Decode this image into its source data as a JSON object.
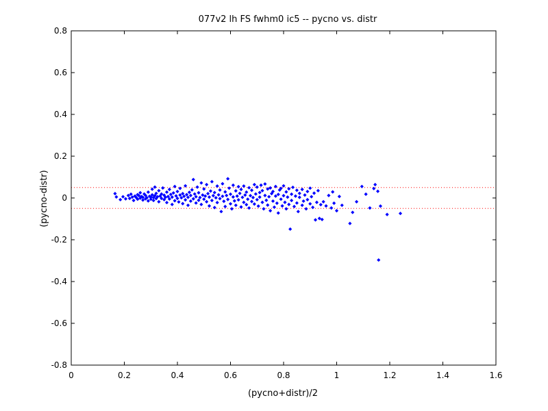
{
  "chart_data": {
    "type": "scatter",
    "title": "077v2 lh FS fwhm0 ic5 -- pycno vs. distr",
    "xlabel": "(pycno+distr)/2",
    "ylabel": "(pycno-distr)",
    "xlim": [
      0,
      1.6
    ],
    "ylim": [
      -0.8,
      0.8
    ],
    "xticks": [
      0,
      0.2,
      0.4,
      0.6,
      0.8,
      1,
      1.2,
      1.4,
      1.6
    ],
    "xtick_labels": [
      "0",
      "0.2",
      "0.4",
      "0.6",
      "0.8",
      "1",
      "1.2",
      "1.4",
      "1.6"
    ],
    "yticks": [
      -0.8,
      -0.6,
      -0.4,
      -0.2,
      0,
      0.2,
      0.4,
      0.6,
      0.8
    ],
    "ytick_labels": [
      "-0.8",
      "-0.6",
      "-0.4",
      "-0.2",
      "0",
      "0.2",
      "0.4",
      "0.6",
      "0.8"
    ],
    "grid": false,
    "marker_color": "#0000ff",
    "reference_line_color": "#ff0000",
    "reference_lines": [
      {
        "y": 0.05,
        "style": "dotted"
      },
      {
        "y": -0.05,
        "style": "dotted"
      }
    ],
    "series": [
      {
        "marker": "diamond",
        "points": [
          [
            0.165,
            0.021
          ],
          [
            0.17,
            0.005
          ],
          [
            0.185,
            -0.008
          ],
          [
            0.195,
            0.006
          ],
          [
            0.205,
            -0.004
          ],
          [
            0.215,
            0.012
          ],
          [
            0.22,
            -0.002
          ],
          [
            0.225,
            0.018
          ],
          [
            0.23,
            0.004
          ],
          [
            0.235,
            -0.012
          ],
          [
            0.24,
            0.009
          ],
          [
            0.245,
            0.002
          ],
          [
            0.25,
            0.016
          ],
          [
            0.25,
            -0.006
          ],
          [
            0.255,
            0.011
          ],
          [
            0.26,
            -0.001
          ],
          [
            0.26,
            0.025
          ],
          [
            0.265,
            0.007
          ],
          [
            0.27,
            -0.01
          ],
          [
            0.27,
            0.003
          ],
          [
            0.275,
            0.019
          ],
          [
            0.28,
            -0.004
          ],
          [
            0.28,
            0.012
          ],
          [
            0.285,
            0.001
          ],
          [
            0.29,
            0.028
          ],
          [
            0.29,
            -0.014
          ],
          [
            0.295,
            0.008
          ],
          [
            0.3,
            0.004
          ],
          [
            0.3,
            -0.006
          ],
          [
            0.305,
            0.015
          ],
          [
            0.305,
            0.042
          ],
          [
            0.31,
            0.002
          ],
          [
            0.31,
            -0.012
          ],
          [
            0.315,
            0.052
          ],
          [
            0.315,
            0.011
          ],
          [
            0.32,
            -0.003
          ],
          [
            0.32,
            0.022
          ],
          [
            0.325,
            0.006
          ],
          [
            0.33,
            -0.018
          ],
          [
            0.33,
            0.035
          ],
          [
            0.335,
            0.009
          ],
          [
            0.34,
            -0.002
          ],
          [
            0.34,
            0.019
          ],
          [
            0.345,
            0.048
          ],
          [
            0.35,
            -0.008
          ],
          [
            0.35,
            0.013
          ],
          [
            0.355,
            0.003
          ],
          [
            0.36,
            0.028
          ],
          [
            0.36,
            -0.022
          ],
          [
            0.365,
            0.007
          ],
          [
            0.37,
            0.041
          ],
          [
            0.37,
            -0.005
          ],
          [
            0.375,
            0.017
          ],
          [
            0.38,
            -0.031
          ],
          [
            0.38,
            0.004
          ],
          [
            0.385,
            0.024
          ],
          [
            0.39,
            -0.013
          ],
          [
            0.39,
            0.055
          ],
          [
            0.395,
            0.01
          ],
          [
            0.4,
            -0.002
          ],
          [
            0.4,
            0.031
          ],
          [
            0.405,
            -0.019
          ],
          [
            0.41,
            0.014
          ],
          [
            0.41,
            0.046
          ],
          [
            0.415,
            0.001
          ],
          [
            0.42,
            -0.027
          ],
          [
            0.42,
            0.021
          ],
          [
            0.425,
            0.008
          ],
          [
            0.43,
            -0.009
          ],
          [
            0.43,
            0.058
          ],
          [
            0.435,
            0.016
          ],
          [
            0.44,
            -0.035
          ],
          [
            0.44,
            0.003
          ],
          [
            0.445,
            0.027
          ],
          [
            0.45,
            -0.015
          ],
          [
            0.45,
            0.012
          ],
          [
            0.455,
            0.039
          ],
          [
            0.46,
            -0.004
          ],
          [
            0.46,
            0.088
          ],
          [
            0.465,
            0.019
          ],
          [
            0.47,
            -0.024
          ],
          [
            0.47,
            0.006
          ],
          [
            0.475,
            0.052
          ],
          [
            0.48,
            -0.011
          ],
          [
            0.48,
            0.025
          ],
          [
            0.485,
            0.002
          ],
          [
            0.49,
            0.072
          ],
          [
            0.49,
            -0.031
          ],
          [
            0.495,
            0.014
          ],
          [
            0.5,
            -0.006
          ],
          [
            0.5,
            0.043
          ],
          [
            0.505,
            0.009
          ],
          [
            0.51,
            -0.018
          ],
          [
            0.51,
            0.064
          ],
          [
            0.515,
            0.021
          ],
          [
            0.52,
            -0.038
          ],
          [
            0.52,
            0.004
          ],
          [
            0.525,
            0.033
          ],
          [
            0.53,
            -0.012
          ],
          [
            0.53,
            0.078
          ],
          [
            0.535,
            0.011
          ],
          [
            0.54,
            -0.046
          ],
          [
            0.54,
            0.026
          ],
          [
            0.545,
            0.001
          ],
          [
            0.55,
            0.057
          ],
          [
            0.55,
            -0.022
          ],
          [
            0.555,
            0.015
          ],
          [
            0.56,
            -0.003
          ],
          [
            0.56,
            0.038
          ],
          [
            0.565,
            -0.065
          ],
          [
            0.57,
            0.008
          ],
          [
            0.57,
            0.068
          ],
          [
            0.575,
            -0.016
          ],
          [
            0.58,
            0.029
          ],
          [
            0.58,
            -0.041
          ],
          [
            0.585,
            0.012
          ],
          [
            0.59,
            0.092
          ],
          [
            0.59,
            -0.007
          ],
          [
            0.595,
            0.047
          ],
          [
            0.6,
            -0.028
          ],
          [
            0.6,
            0.018
          ],
          [
            0.605,
            -0.052
          ],
          [
            0.61,
            0.005
          ],
          [
            0.61,
            0.061
          ],
          [
            0.615,
            -0.014
          ],
          [
            0.62,
            0.034
          ],
          [
            0.62,
            -0.035
          ],
          [
            0.625,
            0.009
          ],
          [
            0.63,
            0.054
          ],
          [
            0.63,
            -0.009
          ],
          [
            0.635,
            0.022
          ],
          [
            0.64,
            -0.043
          ],
          [
            0.64,
            0.041
          ],
          [
            0.645,
            0.003
          ],
          [
            0.65,
            -0.021
          ],
          [
            0.65,
            0.057
          ],
          [
            0.655,
            0.014
          ],
          [
            0.66,
            -0.032
          ],
          [
            0.66,
            0.028
          ],
          [
            0.665,
            -0.006
          ],
          [
            0.67,
            0.049
          ],
          [
            0.67,
            -0.048
          ],
          [
            0.675,
            0.011
          ],
          [
            0.68,
            0.037
          ],
          [
            0.68,
            -0.017
          ],
          [
            0.685,
            0.002
          ],
          [
            0.69,
            0.064
          ],
          [
            0.69,
            -0.029
          ],
          [
            0.695,
            0.019
          ],
          [
            0.7,
            -0.008
          ],
          [
            0.7,
            0.052
          ],
          [
            0.705,
            -0.039
          ],
          [
            0.71,
            0.026
          ],
          [
            0.71,
            0.004
          ],
          [
            0.715,
            0.061
          ],
          [
            0.72,
            -0.021
          ],
          [
            0.72,
            0.035
          ],
          [
            0.725,
            -0.052
          ],
          [
            0.73,
            0.012
          ],
          [
            0.73,
            0.067
          ],
          [
            0.735,
            -0.011
          ],
          [
            0.74,
            0.043
          ],
          [
            0.74,
            -0.034
          ],
          [
            0.745,
            0.006
          ],
          [
            0.75,
            0.048
          ],
          [
            0.75,
            -0.061
          ],
          [
            0.755,
            0.021
          ],
          [
            0.76,
            -0.015
          ],
          [
            0.76,
            0.031
          ],
          [
            0.765,
            -0.044
          ],
          [
            0.77,
            0.009
          ],
          [
            0.77,
            0.055
          ],
          [
            0.775,
            -0.025
          ],
          [
            0.78,
            0.017
          ],
          [
            0.78,
            -0.072
          ],
          [
            0.785,
            0.038
          ],
          [
            0.79,
            -0.006
          ],
          [
            0.79,
            0.046
          ],
          [
            0.795,
            -0.038
          ],
          [
            0.8,
            0.011
          ],
          [
            0.8,
            0.058
          ],
          [
            0.805,
            -0.021
          ],
          [
            0.81,
            0.029
          ],
          [
            0.81,
            -0.052
          ],
          [
            0.815,
            0.004
          ],
          [
            0.82,
            0.044
          ],
          [
            0.82,
            -0.031
          ],
          [
            0.825,
            -0.149
          ],
          [
            0.83,
            0.018
          ],
          [
            0.83,
            -0.012
          ],
          [
            0.835,
            0.051
          ],
          [
            0.84,
            -0.041
          ],
          [
            0.845,
            0.009
          ],
          [
            0.85,
            0.037
          ],
          [
            0.85,
            -0.024
          ],
          [
            0.855,
            -0.065
          ],
          [
            0.86,
            0.022
          ],
          [
            0.86,
            0.003
          ],
          [
            0.87,
            -0.035
          ],
          [
            0.87,
            0.041
          ],
          [
            0.875,
            -0.015
          ],
          [
            0.88,
            0.014
          ],
          [
            0.885,
            -0.052
          ],
          [
            0.89,
            0.031
          ],
          [
            0.89,
            -0.008
          ],
          [
            0.9,
            -0.028
          ],
          [
            0.9,
            0.047
          ],
          [
            0.905,
            0.006
          ],
          [
            0.91,
            -0.045
          ],
          [
            0.915,
            0.023
          ],
          [
            0.92,
            -0.105
          ],
          [
            0.925,
            -0.021
          ],
          [
            0.93,
            0.035
          ],
          [
            0.935,
            -0.098
          ],
          [
            0.94,
            -0.032
          ],
          [
            0.945,
            -0.103
          ],
          [
            0.95,
            -0.018
          ],
          [
            0.96,
            -0.038
          ],
          [
            0.97,
            0.012
          ],
          [
            0.98,
            -0.048
          ],
          [
            0.985,
            0.029
          ],
          [
            0.99,
            -0.025
          ],
          [
            1.0,
            -0.061
          ],
          [
            1.01,
            0.007
          ],
          [
            1.02,
            -0.035
          ],
          [
            1.05,
            -0.122
          ],
          [
            1.06,
            -0.069
          ],
          [
            1.075,
            -0.018
          ],
          [
            1.095,
            0.055
          ],
          [
            1.11,
            0.018
          ],
          [
            1.125,
            -0.048
          ],
          [
            1.14,
            0.045
          ],
          [
            1.145,
            0.064
          ],
          [
            1.155,
            0.032
          ],
          [
            1.158,
            -0.297
          ],
          [
            1.165,
            -0.039
          ],
          [
            1.19,
            -0.079
          ],
          [
            1.24,
            -0.074
          ]
        ]
      }
    ]
  }
}
